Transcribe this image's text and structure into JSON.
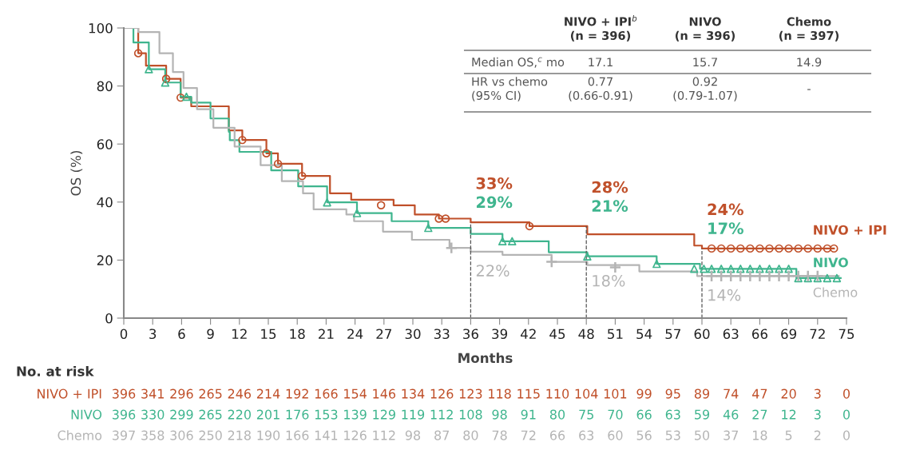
{
  "chart_data": {
    "type": "step",
    "xlabel": "Months",
    "ylabel": "OS (%)",
    "xlim": [
      0,
      75
    ],
    "xticks": [
      0,
      3,
      6,
      9,
      12,
      15,
      18,
      21,
      24,
      27,
      30,
      33,
      36,
      39,
      42,
      45,
      48,
      51,
      54,
      57,
      60,
      63,
      66,
      69,
      72,
      75
    ],
    "ylim": [
      0,
      100
    ],
    "yticks": [
      0,
      20,
      40,
      60,
      80,
      100
    ],
    "grid": false,
    "legend": false,
    "series": [
      {
        "name": "NIVO + IPI",
        "color": "#c0502a",
        "x": [
          0,
          1.5,
          2.3,
          4.4,
          5.9,
          7.0,
          10.9,
          12.3,
          14.8,
          16.0,
          18.5,
          21.4,
          23.6,
          28.0,
          30.2,
          32.7,
          36,
          42.1,
          48.1,
          59.2,
          60,
          73.7
        ],
        "values": [
          100,
          91.3,
          87,
          82.5,
          76,
          73,
          64.7,
          61.4,
          56.8,
          53.2,
          49,
          43,
          40.8,
          38.9,
          35.7,
          34.3,
          33,
          31.7,
          28.9,
          25,
          24,
          24
        ]
      },
      {
        "name": "NIVO",
        "color": "#3fb58e",
        "x": [
          0,
          1.0,
          2.6,
          4.3,
          5.9,
          7.0,
          9.0,
          10.9,
          11.0,
          12.0,
          15.3,
          18.1,
          21.1,
          24.2,
          27.8,
          31.6,
          36,
          39.3,
          44.1,
          48.1,
          55.3,
          59.8,
          69.8,
          74.4
        ],
        "values": [
          100,
          95,
          85.8,
          81.2,
          76.3,
          74.3,
          68.8,
          64.2,
          61.3,
          57.3,
          50.9,
          45.4,
          39.9,
          36.2,
          33.4,
          31.1,
          29,
          26.5,
          22.7,
          21.3,
          18.7,
          17,
          13.8,
          13.8
        ]
      },
      {
        "name": "Chemo",
        "color": "#b4b4b4",
        "x": [
          0,
          1.5,
          3.7,
          5.1,
          6.2,
          7.6,
          9.3,
          11.5,
          14.2,
          16.4,
          18.6,
          19.7,
          23.1,
          23.9,
          26.9,
          29.9,
          33.8,
          36,
          39.3,
          44.4,
          48.1,
          53.5,
          59.5,
          74.2
        ],
        "values": [
          100,
          98.6,
          91.3,
          84.8,
          79.3,
          72,
          65.6,
          59.1,
          52.7,
          47.2,
          43,
          37.5,
          35.7,
          33.4,
          29.8,
          27,
          24.2,
          22.9,
          21.8,
          19.4,
          18.3,
          16.1,
          14.5,
          14.5
        ]
      },
      {
        "type": "scatter",
        "marker": "circle",
        "color": "#c0502a",
        "x": [
          1.5,
          4.4,
          5.9,
          12.3,
          14.8,
          16.0,
          18.5,
          26.7,
          32.7,
          33.4,
          42.1,
          61,
          62,
          63,
          64,
          65,
          66,
          67,
          68,
          69,
          70,
          71,
          72,
          73,
          73.7
        ],
        "values": [
          91.3,
          82.5,
          76,
          61.4,
          56.8,
          53.2,
          49,
          38.9,
          34.3,
          34.3,
          31.7,
          24,
          24,
          24,
          24,
          24,
          24,
          24,
          24,
          24,
          24,
          24,
          24,
          24,
          24
        ]
      },
      {
        "type": "scatter",
        "marker": "triangle",
        "color": "#3fb58e",
        "x": [
          2.6,
          4.3,
          6.5,
          21.1,
          24.2,
          31.6,
          39.3,
          40.3,
          48.1,
          55.3,
          59.2,
          60.2,
          61,
          62,
          63,
          64,
          65,
          66,
          67,
          68,
          69,
          70,
          71,
          72,
          73,
          74
        ],
        "values": [
          85.8,
          81.2,
          76.3,
          39.9,
          36.2,
          31.1,
          26.5,
          26.5,
          21.3,
          18.7,
          17,
          17,
          17,
          17,
          17,
          17,
          17,
          17,
          17,
          17,
          17,
          13.8,
          13.8,
          13.8,
          13.8,
          13.8
        ]
      },
      {
        "type": "scatter",
        "marker": "cross",
        "color": "#b4b4b4",
        "x": [
          34,
          44.4,
          51,
          61,
          62,
          63,
          64,
          65,
          66,
          67,
          68,
          69,
          70,
          71,
          72
        ],
        "values": [
          24.2,
          19.4,
          17.5,
          14.5,
          14.5,
          14.5,
          14.5,
          14.5,
          14.5,
          14.5,
          14.5,
          14.5,
          14.5,
          14.5,
          14.5
        ]
      }
    ],
    "ref_lines": [
      {
        "axis": "x",
        "value": 36,
        "color": "#555555",
        "line_style": "dashed"
      },
      {
        "axis": "x",
        "value": 48,
        "color": "#555555",
        "line_style": "dashed"
      },
      {
        "axis": "x",
        "value": 60,
        "color": "#555555",
        "line_style": "dashed"
      }
    ],
    "annotations": [
      "NIVO + IPI$^{b}$\n(n = 396)",
      "NIVO\n(n = 396)",
      "Chemo\n(n = 397)",
      "Median OS,$^{c}$ mo",
      "17.1",
      "15.7",
      "14.9",
      "HR vs chemo\n(95% CI)",
      "0.77\n(0.66-0.91)",
      "0.92\n(0.79-1.07)",
      "-",
      "No. at risk",
      "396 341 296 265 246 214 192 166 154 146 134 126 123 118 115 110 104 101 99 95 89 74 47 20 3 0",
      "396 330 299 265 220 201 176 153 139 129 119 112 108 98 91 80 75 70 66 63 59 46 27 12 3 0",
      "397 358 306 250 218 190 166 141 126 112 98 87 80 78 72 66 63 60 56 53 50 37 18 5 2 0",
      "33%",
      "29%",
      "22%",
      "28%",
      "21%",
      "18%",
      "24%",
      "17%",
      "14%"
    ]
  }
}
